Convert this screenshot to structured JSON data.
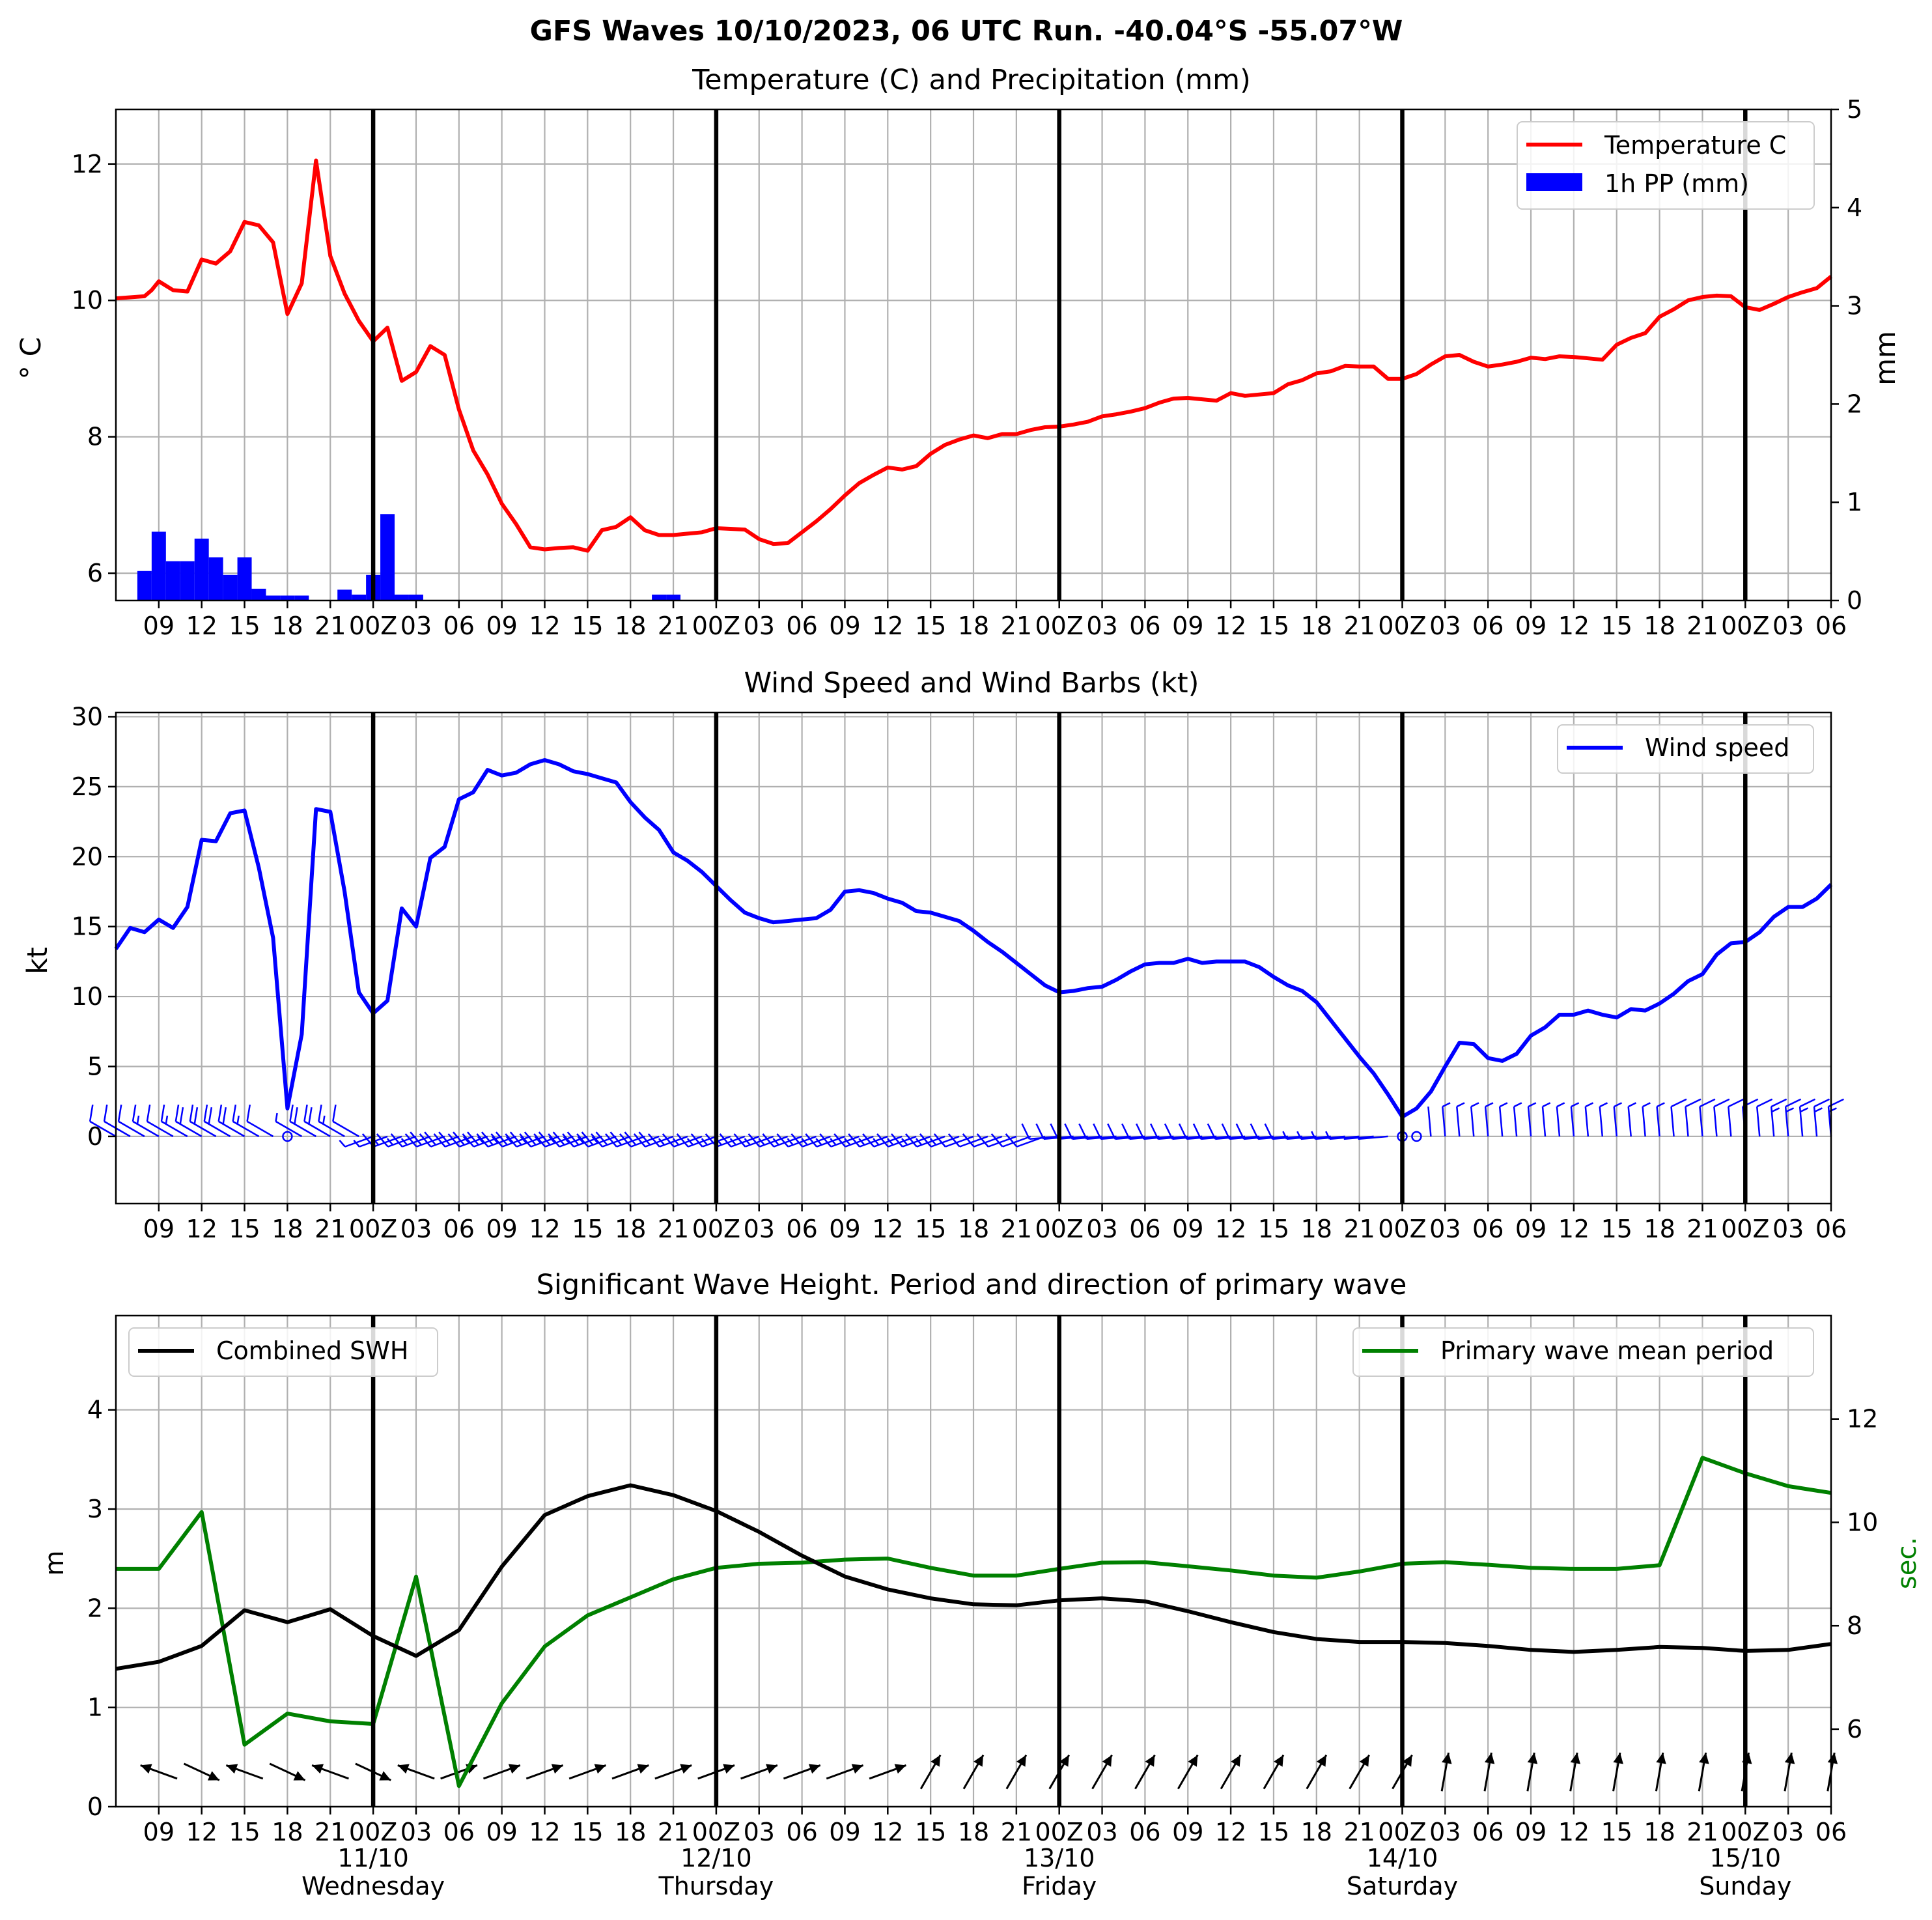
{
  "figure": {
    "title": "GFS Waves 10/10/2023, 06 UTC Run. -40.04°S -55.07°W"
  },
  "x_axis": {
    "start_hour": 6,
    "end_hour": 126,
    "day_ticks": [
      {
        "hour": 24,
        "day_label": "11/10",
        "weekday": "Wednesday"
      },
      {
        "hour": 48,
        "day_label": "12/10",
        "weekday": "Thursday"
      },
      {
        "hour": 72,
        "day_label": "13/10",
        "weekday": "Friday"
      },
      {
        "hour": 96,
        "day_label": "14/10",
        "weekday": "Saturday"
      },
      {
        "hour": 120,
        "day_label": "15/10",
        "weekday": "Sunday"
      }
    ]
  },
  "colors": {
    "temperature": "#ff0000",
    "precip": "#0000ff",
    "wind": "#0000ff",
    "swh": "#000000",
    "period": "#008000",
    "grid": "#b0b0b0"
  },
  "chart_data": [
    {
      "type": "line",
      "title": "Temperature (C) and Precipitation (mm)",
      "ylabel": "° C",
      "ylabel_right": "mm",
      "ylim": [
        5.6,
        12.8
      ],
      "ylim_right": [
        0,
        5
      ],
      "yticks": [
        6,
        8,
        10,
        12
      ],
      "yticks_right": [
        0,
        1,
        2,
        3,
        4,
        5
      ],
      "legend_location": "upper right",
      "legend": [
        "Temperature C",
        "1h PP (mm)"
      ],
      "series": [
        {
          "name": "Temperature C",
          "x_hours": [
            6,
            8,
            8.5,
            9,
            10,
            11,
            12,
            13,
            14,
            15,
            16,
            17,
            18,
            19,
            20,
            21,
            22,
            23,
            24,
            25,
            26,
            27,
            28,
            29,
            30,
            31,
            32,
            33,
            34,
            35,
            36,
            37,
            38,
            39,
            40,
            41,
            42,
            43,
            44,
            45,
            46,
            47,
            48,
            49,
            50,
            51,
            52,
            53,
            54,
            55,
            56,
            57,
            58,
            59,
            60,
            61,
            62,
            63,
            64,
            65,
            66,
            67,
            68,
            69,
            70,
            71,
            72,
            73,
            74,
            75,
            76,
            77,
            78,
            79,
            80,
            81,
            82,
            83,
            84,
            85,
            86,
            87,
            88,
            89,
            90,
            91,
            92,
            93,
            94,
            95,
            96,
            97,
            98,
            99,
            100,
            101,
            102,
            103,
            104,
            105,
            106,
            107,
            108,
            109,
            110,
            111,
            112,
            113,
            114,
            115,
            116,
            117,
            118,
            119,
            120,
            121,
            122,
            123,
            124,
            125,
            126
          ],
          "values": [
            10.03,
            10.06,
            10.15,
            10.28,
            10.15,
            10.13,
            10.6,
            10.54,
            10.72,
            11.15,
            11.1,
            10.85,
            9.8,
            10.25,
            12.05,
            10.65,
            10.1,
            9.7,
            9.4,
            9.6,
            8.82,
            8.95,
            9.33,
            9.2,
            8.4,
            7.8,
            7.45,
            7.02,
            6.72,
            6.38,
            6.35,
            6.37,
            6.38,
            6.33,
            6.63,
            6.68,
            6.82,
            6.63,
            6.56,
            6.56,
            6.58,
            6.6,
            6.66,
            6.65,
            6.64,
            6.5,
            6.43,
            6.44,
            6.6,
            6.76,
            6.94,
            7.14,
            7.32,
            7.44,
            7.55,
            7.52,
            7.57,
            7.75,
            7.88,
            7.96,
            8.02,
            7.98,
            8.04,
            8.04,
            8.1,
            8.14,
            8.15,
            8.18,
            8.22,
            8.3,
            8.33,
            8.37,
            8.42,
            8.5,
            8.56,
            8.57,
            8.55,
            8.53,
            8.64,
            8.6,
            8.62,
            8.64,
            8.77,
            8.83,
            8.93,
            8.96,
            9.04,
            9.03,
            9.03,
            8.85,
            8.85,
            8.92,
            9.06,
            9.18,
            9.2,
            9.1,
            9.03,
            9.06,
            9.1,
            9.16,
            9.14,
            9.18,
            9.17,
            9.15,
            9.13,
            9.35,
            9.45,
            9.52,
            9.76,
            9.87,
            10.0,
            10.05,
            10.07,
            10.06,
            9.9,
            9.86,
            9.95,
            10.05,
            10.12,
            10.18,
            10.35
          ]
        },
        {
          "name": "1h PP (mm)",
          "x_hours": [
            8,
            9,
            10,
            11,
            12,
            13,
            14,
            15,
            16,
            17,
            18,
            19,
            22,
            23,
            24,
            25,
            26,
            27,
            44,
            45
          ],
          "values": [
            0.3,
            0.7,
            0.4,
            0.4,
            0.63,
            0.44,
            0.26,
            0.44,
            0.12,
            0.05,
            0.05,
            0.05,
            0.11,
            0.06,
            0.26,
            0.88,
            0.06,
            0.06,
            0.06,
            0.06
          ]
        }
      ]
    },
    {
      "type": "line",
      "title": "Wind Speed and Wind Barbs (kt)",
      "ylabel": "kt",
      "ylim": [
        -4.8,
        30.3
      ],
      "yticks": [
        0,
        5,
        10,
        15,
        20,
        25,
        30
      ],
      "legend_location": "upper right",
      "legend": [
        "Wind speed"
      ],
      "series": [
        {
          "name": "Wind speed",
          "x_hours": [
            6,
            7,
            8,
            9,
            10,
            11,
            12,
            13,
            14,
            15,
            16,
            17,
            18,
            19,
            20,
            21,
            22,
            23,
            24,
            25,
            26,
            27,
            28,
            29,
            30,
            31,
            32,
            33,
            34,
            35,
            36,
            37,
            38,
            39,
            40,
            41,
            42,
            43,
            44,
            45,
            46,
            47,
            48,
            49,
            50,
            51,
            52,
            53,
            54,
            55,
            56,
            57,
            58,
            59,
            60,
            61,
            62,
            63,
            64,
            65,
            66,
            67,
            68,
            69,
            70,
            71,
            72,
            73,
            74,
            75,
            76,
            77,
            78,
            79,
            80,
            81,
            82,
            83,
            84,
            85,
            86,
            87,
            88,
            89,
            90,
            91,
            92,
            93,
            94,
            95,
            96,
            97,
            98,
            99,
            100,
            101,
            102,
            103,
            104,
            105,
            106,
            107,
            108,
            109,
            110,
            111,
            112,
            113,
            114,
            115,
            116,
            117,
            118,
            119,
            120,
            121,
            122,
            123,
            124,
            125,
            126
          ],
          "values": [
            13.4,
            14.9,
            14.6,
            15.5,
            14.9,
            16.4,
            21.2,
            21.1,
            23.1,
            23.3,
            19.2,
            14.2,
            2.0,
            7.3,
            23.4,
            23.2,
            17.5,
            10.3,
            8.8,
            9.7,
            16.3,
            15.0,
            19.9,
            20.7,
            24.1,
            24.6,
            26.2,
            25.8,
            26.0,
            26.6,
            26.9,
            26.6,
            26.1,
            25.9,
            25.6,
            25.3,
            23.9,
            22.8,
            21.9,
            20.3,
            19.7,
            18.9,
            17.9,
            16.9,
            16.0,
            15.6,
            15.3,
            15.4,
            15.5,
            15.6,
            16.2,
            17.5,
            17.6,
            17.4,
            17.0,
            16.7,
            16.1,
            16.0,
            15.7,
            15.4,
            14.7,
            13.9,
            13.2,
            12.4,
            11.6,
            10.8,
            10.3,
            10.4,
            10.6,
            10.7,
            11.2,
            11.8,
            12.3,
            12.4,
            12.4,
            12.7,
            12.4,
            12.5,
            12.5,
            12.5,
            12.1,
            11.4,
            10.8,
            10.4,
            9.6,
            8.3,
            7.0,
            5.7,
            4.5,
            3.0,
            1.4,
            2.0,
            3.2,
            5.0,
            6.7,
            6.6,
            5.6,
            5.4,
            5.9,
            7.2,
            7.8,
            8.7,
            8.7,
            9.0,
            8.7,
            8.5,
            9.1,
            9.0,
            9.5,
            10.2,
            11.1,
            11.6,
            13.0,
            13.8,
            13.9,
            14.6,
            15.7,
            16.4,
            16.4,
            17.0,
            18.0
          ]
        }
      ]
    },
    {
      "type": "line",
      "title": "Significant Wave Height. Period and direction of primary wave",
      "ylabel": "m",
      "ylabel_right": "sec.",
      "ylim": [
        0,
        4.95
      ],
      "ylim_right": [
        4.5,
        14
      ],
      "yticks": [
        0,
        1,
        2,
        3,
        4
      ],
      "yticks_right": [
        6,
        8,
        10,
        12
      ],
      "legend_swh_location": "upper left",
      "legend_period_location": "upper right",
      "legend": [
        "Combined SWH",
        "Primary wave mean period"
      ],
      "series": [
        {
          "name": "Combined SWH",
          "x_hours": [
            6,
            9,
            12,
            15,
            18,
            21,
            24,
            27,
            30,
            33,
            36,
            39,
            42,
            45,
            48,
            51,
            54,
            57,
            60,
            63,
            66,
            69,
            72,
            75,
            78,
            81,
            84,
            87,
            90,
            93,
            96,
            99,
            102,
            105,
            108,
            111,
            114,
            117,
            120,
            123,
            126
          ],
          "values": [
            1.39,
            1.46,
            1.62,
            1.98,
            1.86,
            1.99,
            1.72,
            1.52,
            1.78,
            2.42,
            2.94,
            3.13,
            3.24,
            3.14,
            2.98,
            2.77,
            2.53,
            2.32,
            2.19,
            2.1,
            2.04,
            2.03,
            2.08,
            2.1,
            2.07,
            1.97,
            1.86,
            1.76,
            1.69,
            1.66,
            1.66,
            1.65,
            1.62,
            1.58,
            1.56,
            1.58,
            1.61,
            1.6,
            1.57,
            1.58,
            1.64
          ]
        },
        {
          "name": "Primary wave mean period",
          "x_hours": [
            6,
            9,
            12,
            15,
            18,
            21,
            24,
            27,
            30,
            33,
            36,
            39,
            42,
            45,
            48,
            51,
            54,
            57,
            60,
            63,
            66,
            69,
            72,
            75,
            78,
            81,
            84,
            87,
            90,
            93,
            96,
            99,
            102,
            105,
            108,
            111,
            114,
            117,
            120,
            123,
            126
          ],
          "values": [
            9.1,
            9.1,
            10.2,
            5.7,
            6.3,
            6.15,
            6.1,
            8.95,
            4.9,
            6.5,
            7.6,
            8.2,
            8.55,
            8.9,
            9.12,
            9.2,
            9.22,
            9.28,
            9.3,
            9.12,
            8.97,
            8.97,
            9.1,
            9.22,
            9.23,
            9.15,
            9.07,
            8.97,
            8.93,
            9.05,
            9.2,
            9.23,
            9.18,
            9.12,
            9.1,
            9.1,
            9.17,
            11.25,
            10.95,
            10.7,
            10.57
          ]
        }
      ]
    }
  ]
}
